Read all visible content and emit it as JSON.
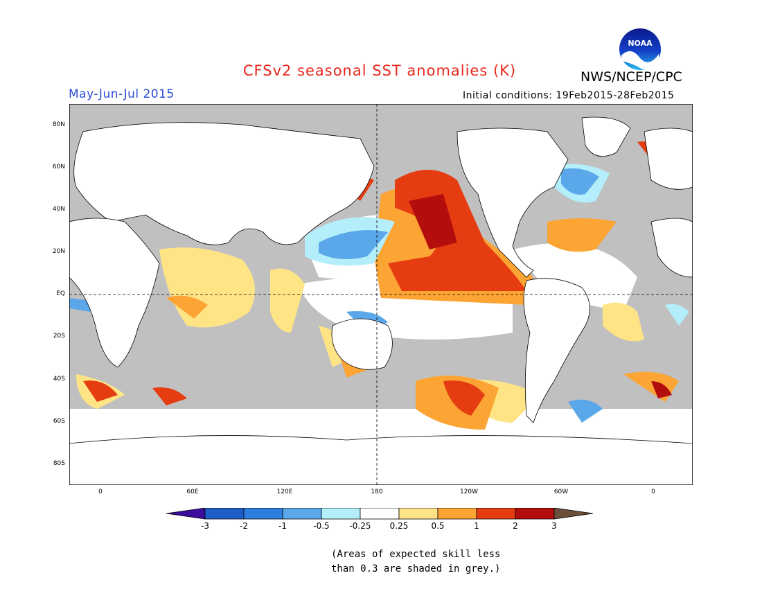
{
  "title": "CFSv2 seasonal SST anomalies (K)",
  "agency": "NWS/NCEP/CPC",
  "logo_text": "NOAA",
  "period": "May-Jun-Jul 2015",
  "initial_conditions": "Initial conditions: 19Feb2015-28Feb2015",
  "lat_labels": [
    "80N",
    "60N",
    "40N",
    "20N",
    "EQ",
    "20S",
    "40S",
    "60S",
    "80S"
  ],
  "lon_labels": [
    "0",
    "60E",
    "120E",
    "180",
    "120W",
    "60W",
    "0"
  ],
  "colorbar": {
    "labels": [
      "-3",
      "-2",
      "-1",
      "-0.5",
      "-0.25",
      "0.25",
      "0.5",
      "1",
      "2",
      "3"
    ],
    "colors": [
      "#3a0d9c",
      "#1d5fc7",
      "#2e7ee0",
      "#5aa7ea",
      "#b4eefa",
      "#ffffff",
      "#ffe486",
      "#fca434",
      "#e63c12",
      "#b40d0d",
      "#6b4f3a"
    ]
  },
  "skill_note_line1": "(Areas of expected skill less",
  "skill_note_line2": "than 0.3 are shaded in grey.)",
  "colors": {
    "land": "#ffffff",
    "low_skill": "#c0c0c0",
    "title_red": "#e8271b",
    "period_blue": "#2a4bd7"
  }
}
